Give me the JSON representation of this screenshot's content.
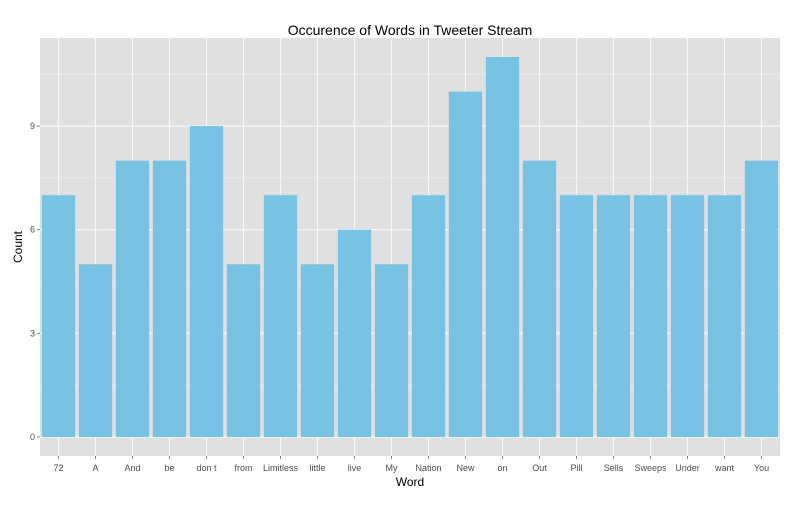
{
  "chart_data": {
    "type": "bar",
    "title": "Occurence of Words in Tweeter Stream",
    "xlabel": "Word",
    "ylabel": "Count",
    "categories": [
      "72",
      "A",
      "And",
      "be",
      "don t",
      "from",
      "Limitless",
      "little",
      "live",
      "My",
      "Nation",
      "New",
      "on",
      "Out",
      "Pill",
      "Sells",
      "Sweeps",
      "Under",
      "want",
      "You"
    ],
    "values": [
      7,
      5,
      8,
      8,
      9,
      5,
      7,
      5,
      6,
      5,
      7,
      10,
      11,
      8,
      7,
      7,
      7,
      7,
      7,
      8
    ],
    "ylim": [
      -0.55,
      11.55
    ],
    "yticks": [
      0,
      3,
      6,
      9
    ],
    "ytick_labels": [
      "0",
      "3",
      "6",
      "9"
    ],
    "grid": true,
    "legend": "none",
    "colors": {
      "bar": "#78c3e4",
      "panel": "#e0e0e0",
      "grid_major": "#f8f8f8",
      "grid_minor": "#ececec",
      "tick_text": "#4d4d4d",
      "title_text": "#000000"
    }
  }
}
